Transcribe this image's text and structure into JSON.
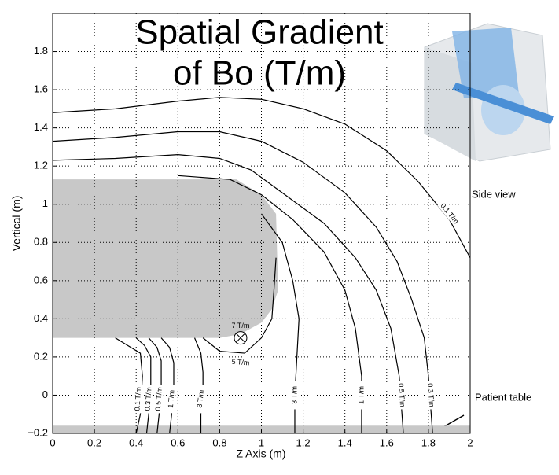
{
  "chart_data": {
    "type": "contour",
    "title": [
      "Spatial Gradient",
      "of Bo (T/m)"
    ],
    "title_color": "#ff0000",
    "xlabel": "Z Axis (m)",
    "ylabel": "Vertical (m)",
    "xlim": [
      0,
      2
    ],
    "ylim": [
      -0.2,
      2
    ],
    "xticks": [
      0,
      0.2,
      0.4,
      0.6,
      0.8,
      1,
      1.2,
      1.4,
      1.6,
      1.8,
      2
    ],
    "yticks": [
      {
        "value": -0.2,
        "label": "−0.2"
      },
      0,
      0.2,
      0.4,
      0.6,
      0.8,
      1,
      1.2,
      1.4,
      1.6,
      1.8
    ],
    "grid": true,
    "regions": [
      {
        "color": "#c8c8c8",
        "x": [
          0,
          0.88,
          1.0,
          1.07,
          1.08,
          1.05,
          1.0,
          0.9,
          0.8,
          0
        ],
        "y": [
          1.13,
          1.13,
          1.05,
          0.95,
          0.55,
          0.45,
          0.38,
          0.32,
          0.3,
          0.3
        ]
      },
      {
        "color": "#c8c8c8",
        "x": [
          0,
          2,
          2,
          0
        ],
        "y": [
          -0.2,
          -0.2,
          -0.16,
          -0.16
        ]
      }
    ],
    "series": [
      {
        "name": "0.1 T/m",
        "color": "#000000",
        "x": [
          0,
          0.3,
          0.6,
          0.8,
          1.0,
          1.2,
          1.4,
          1.6,
          1.75,
          1.9,
          2.0
        ],
        "y": [
          1.48,
          1.5,
          1.54,
          1.56,
          1.55,
          1.5,
          1.42,
          1.28,
          1.12,
          0.92,
          0.72
        ],
        "label_at": [
          1.9,
          0.95
        ]
      },
      {
        "name": "0.3 T/m",
        "color": "#000000",
        "x": [
          0,
          0.3,
          0.6,
          0.8,
          1.0,
          1.2,
          1.4,
          1.55,
          1.65,
          1.72,
          1.78,
          1.8,
          1.82
        ],
        "y": [
          1.33,
          1.35,
          1.38,
          1.38,
          1.33,
          1.22,
          1.06,
          0.88,
          0.7,
          0.5,
          0.3,
          0.1,
          -0.2
        ],
        "label_at": [
          1.81,
          0.0
        ]
      },
      {
        "name": "0.5 T/m",
        "color": "#000000",
        "x": [
          0,
          0.3,
          0.6,
          0.8,
          0.95,
          1.1,
          1.3,
          1.45,
          1.55,
          1.62,
          1.66,
          1.68
        ],
        "y": [
          1.23,
          1.24,
          1.26,
          1.24,
          1.18,
          1.06,
          0.9,
          0.72,
          0.55,
          0.35,
          0.1,
          -0.2
        ],
        "label_at": [
          1.67,
          0.0
        ]
      },
      {
        "name": "1 T/m",
        "color": "#000000",
        "x": [
          0.6,
          0.85,
          1.0,
          1.15,
          1.3,
          1.4,
          1.45,
          1.48,
          1.48
        ],
        "y": [
          1.15,
          1.13,
          1.05,
          0.92,
          0.75,
          0.55,
          0.35,
          0.1,
          -0.2
        ],
        "label_at": [
          1.48,
          0.0
        ]
      },
      {
        "name": "3 T/m",
        "color": "#000000",
        "x": [
          1.0,
          1.1,
          1.15,
          1.18,
          1.17,
          1.16,
          1.16
        ],
        "y": [
          0.95,
          0.8,
          0.6,
          0.4,
          0.2,
          0.0,
          -0.2
        ],
        "label_at": [
          1.16,
          0.0
        ]
      },
      {
        "name": "5 T/m",
        "color": "#000000",
        "x": [
          1.07,
          1.06,
          1.05,
          1.0,
          0.92,
          0.8,
          0.72
        ],
        "y": [
          0.72,
          0.55,
          0.4,
          0.3,
          0.22,
          0.23,
          0.3
        ],
        "label_at": [
          0.9,
          0.17
        ]
      },
      {
        "name": "0.1 T/m",
        "color": "#000000",
        "x": [
          0.3,
          0.36,
          0.42,
          0.43,
          0.42,
          0.4
        ],
        "y": [
          0.3,
          0.26,
          0.22,
          0.1,
          -0.1,
          -0.2
        ],
        "label_at": [
          0.41,
          -0.02
        ]
      },
      {
        "name": "0.3 T/m",
        "color": "#000000",
        "x": [
          0.4,
          0.44,
          0.47,
          0.47,
          0.46,
          0.45
        ],
        "y": [
          0.3,
          0.26,
          0.2,
          0.05,
          -0.1,
          -0.2
        ],
        "label_at": [
          0.46,
          -0.02
        ]
      },
      {
        "name": "0.5 T/m",
        "color": "#000000",
        "x": [
          0.46,
          0.5,
          0.52,
          0.52,
          0.51,
          0.5
        ],
        "y": [
          0.3,
          0.25,
          0.18,
          0.05,
          -0.1,
          -0.2
        ],
        "label_at": [
          0.51,
          -0.02
        ]
      },
      {
        "name": "1 T/m",
        "color": "#000000",
        "x": [
          0.52,
          0.56,
          0.58,
          0.58,
          0.57,
          0.56
        ],
        "y": [
          0.3,
          0.25,
          0.17,
          0.05,
          -0.1,
          -0.2
        ],
        "label_at": [
          0.57,
          -0.02
        ]
      },
      {
        "name": "3 T/m",
        "color": "#000000",
        "x": [
          0.68,
          0.71,
          0.72,
          0.72,
          0.71,
          0.71
        ],
        "y": [
          0.3,
          0.22,
          0.12,
          0.0,
          -0.1,
          -0.2
        ],
        "label_at": [
          0.71,
          -0.02
        ]
      }
    ],
    "marker": {
      "label": "7 T/m",
      "x": 0.9,
      "y": 0.3
    },
    "annotations": [
      "Side view",
      "Patient table"
    ]
  }
}
